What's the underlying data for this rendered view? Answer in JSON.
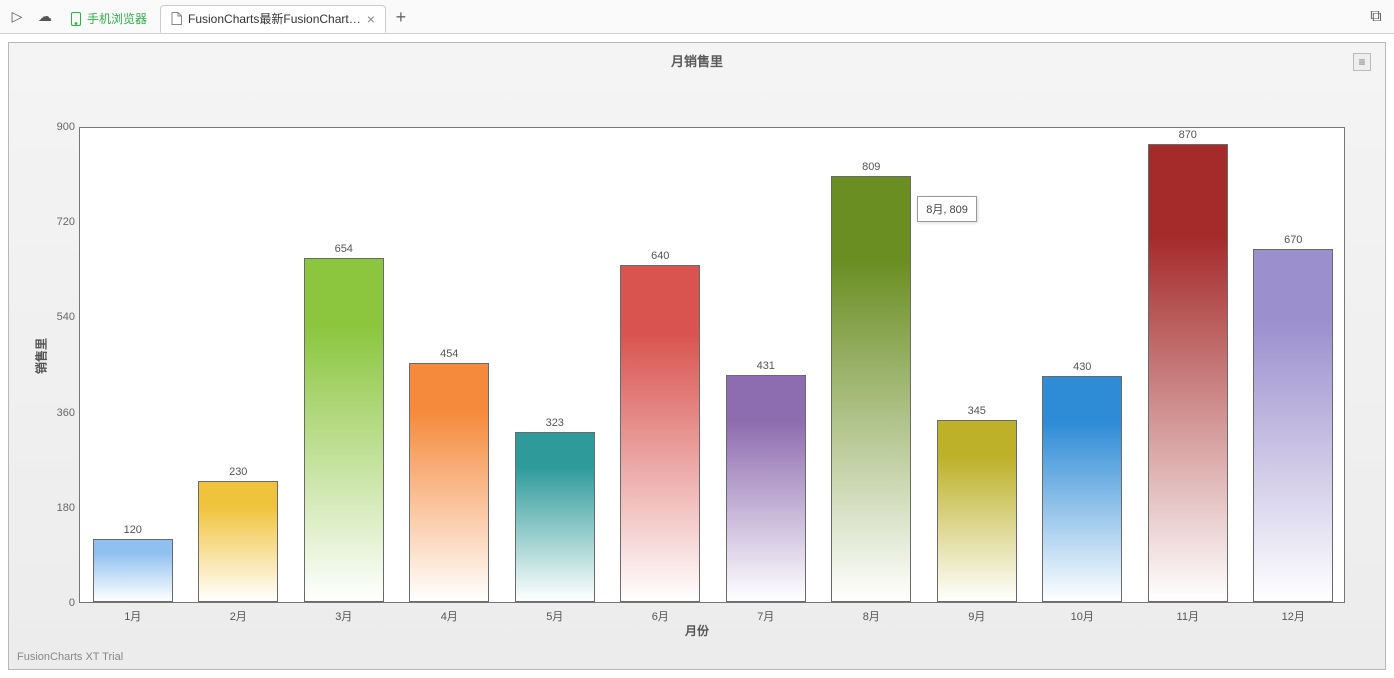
{
  "tabs": {
    "run_icon": "▷",
    "cloud_icon": "☁",
    "items": [
      {
        "label": "手机浏览器",
        "kind": "device",
        "active": false
      },
      {
        "label": "FusionCharts最新FusionChart…",
        "kind": "file",
        "active": true
      }
    ],
    "add_label": "+",
    "right_icon": "⧉"
  },
  "chart": {
    "type": "bar",
    "title": "月销售里",
    "x_axis_label": "月份",
    "y_axis_label": "销售里",
    "watermark": "FusionCharts XT Trial",
    "background_gradient_top": "#f4f4f4",
    "background_gradient_bottom": "#ececec",
    "plot_background": "#ffffff",
    "plot_border_color": "#777777",
    "panel_border_color": "#b8b8b8",
    "title_fontsize": 13,
    "label_fontsize": 12,
    "tick_fontsize": 11,
    "text_color": "#555555",
    "ylim": [
      0,
      900
    ],
    "ytick_step": 180,
    "yticks": [
      0,
      180,
      360,
      540,
      720,
      900
    ],
    "categories": [
      "1月",
      "2月",
      "3月",
      "4月",
      "5月",
      "6月",
      "7月",
      "8月",
      "9月",
      "10月",
      "11月",
      "12月"
    ],
    "values": [
      120,
      230,
      654,
      454,
      323,
      640,
      431,
      809,
      345,
      430,
      870,
      670
    ],
    "bar_colors": [
      "#8fc0f0",
      "#f0c33c",
      "#8cc63f",
      "#f58a3c",
      "#2f9a9a",
      "#d9534f",
      "#8e6cb0",
      "#6b8e23",
      "#bdb12a",
      "#2e8bd6",
      "#a52a2a",
      "#9b8fce"
    ],
    "bar_border_color": "#6a6a6a",
    "bar_width_pct": 76,
    "bar_gradient_light": "#ffffff",
    "tooltip": {
      "visible": true,
      "index": 7,
      "text": "8月, 809",
      "offset_x": 46,
      "offset_y": -20
    }
  }
}
